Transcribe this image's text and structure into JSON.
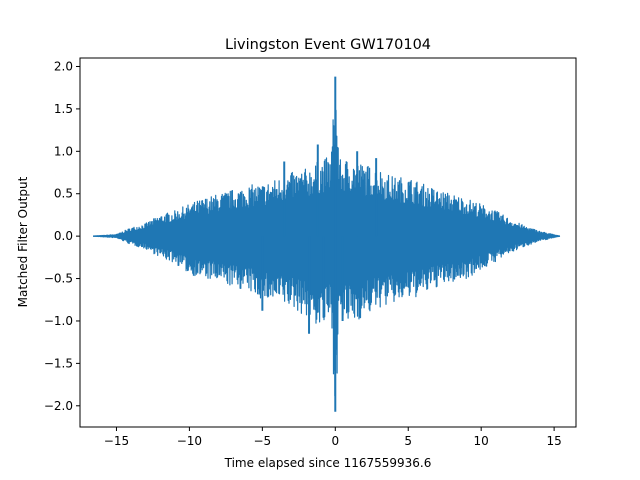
{
  "chart_data": {
    "type": "line",
    "title": "Livingston Event GW170104",
    "xlabel": "Time elapsed since 1167559936.6",
    "ylabel": "Matched Filter Output",
    "xlim": [
      -17.5,
      16.5
    ],
    "ylim": [
      -2.25,
      2.1
    ],
    "xticks": [
      -15,
      -10,
      -5,
      0,
      5,
      10,
      15
    ],
    "xtick_labels": [
      "−15",
      "−10",
      "−5",
      "0",
      "5",
      "10",
      "15"
    ],
    "yticks": [
      2.0,
      1.5,
      1.0,
      0.5,
      0.0,
      -0.5,
      -1.0,
      -1.5,
      -2.0
    ],
    "ytick_labels": [
      "2.0",
      "1.5",
      "1.0",
      "0.5",
      "0.0",
      "−0.5",
      "−1.0",
      "−1.5",
      "−2.0"
    ],
    "grid": false,
    "series": [
      {
        "color": "#1f77b4",
        "x_range": [
          -16.6,
          15.4
        ],
        "envelope": {
          "x": [
            -16.6,
            -15.0,
            -14.0,
            -13.0,
            -12.0,
            -11.0,
            -10.0,
            -9.0,
            -8.0,
            -7.0,
            -6.0,
            -5.0,
            -4.0,
            -3.0,
            -2.0,
            -1.0,
            -0.3,
            0.0,
            0.3,
            1.0,
            2.0,
            3.0,
            4.0,
            5.0,
            6.0,
            7.0,
            8.0,
            9.0,
            10.0,
            11.0,
            12.0,
            13.0,
            14.0,
            15.4
          ],
          "upper": [
            0.0,
            0.02,
            0.1,
            0.15,
            0.25,
            0.3,
            0.38,
            0.45,
            0.5,
            0.55,
            0.6,
            0.62,
            0.68,
            0.75,
            0.8,
            0.9,
            0.95,
            1.88,
            0.9,
            0.92,
            0.85,
            0.8,
            0.7,
            0.7,
            0.62,
            0.55,
            0.5,
            0.45,
            0.38,
            0.3,
            0.2,
            0.12,
            0.06,
            0.0
          ],
          "lower": [
            0.0,
            -0.02,
            -0.1,
            -0.15,
            -0.25,
            -0.32,
            -0.45,
            -0.5,
            -0.55,
            -0.6,
            -0.65,
            -0.75,
            -0.8,
            -0.85,
            -0.95,
            -1.1,
            -1.0,
            -2.07,
            -1.0,
            -1.05,
            -0.95,
            -0.85,
            -0.8,
            -0.75,
            -0.7,
            -0.6,
            -0.55,
            -0.5,
            -0.4,
            -0.3,
            -0.2,
            -0.12,
            -0.06,
            0.0
          ]
        },
        "spikes": [
          {
            "x": 0.0,
            "y": 1.88
          },
          {
            "x": 0.0,
            "y": -2.07
          },
          {
            "x": -1.8,
            "y": -1.15
          },
          {
            "x": -0.8,
            "y": -0.96
          },
          {
            "x": -1.2,
            "y": 1.08
          },
          {
            "x": 0.5,
            "y": -1.0
          },
          {
            "x": 1.5,
            "y": 1.0
          },
          {
            "x": -3.5,
            "y": 0.88
          },
          {
            "x": 2.8,
            "y": 0.92
          },
          {
            "x": -5.0,
            "y": -0.88
          }
        ]
      }
    ]
  }
}
